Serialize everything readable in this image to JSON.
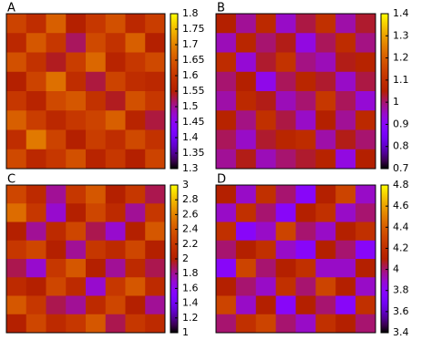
{
  "chart_data": [
    {
      "type": "heatmap",
      "label": "A",
      "zlim": [
        1.3,
        1.8
      ],
      "zticks": [
        1.3,
        1.35,
        1.4,
        1.45,
        1.5,
        1.55,
        1.6,
        1.65,
        1.7,
        1.75,
        1.8
      ],
      "z": [
        [
          1.62,
          1.58,
          1.66,
          1.55,
          1.6,
          1.64,
          1.57,
          1.61
        ],
        [
          1.57,
          1.65,
          1.6,
          1.52,
          1.63,
          1.59,
          1.66,
          1.55
        ],
        [
          1.64,
          1.59,
          1.54,
          1.61,
          1.67,
          1.56,
          1.6,
          1.63
        ],
        [
          1.55,
          1.62,
          1.68,
          1.58,
          1.53,
          1.62,
          1.58,
          1.57
        ],
        [
          1.6,
          1.56,
          1.63,
          1.65,
          1.59,
          1.54,
          1.64,
          1.6
        ],
        [
          1.66,
          1.61,
          1.57,
          1.6,
          1.62,
          1.66,
          1.56,
          1.53
        ],
        [
          1.58,
          1.69,
          1.62,
          1.55,
          1.61,
          1.58,
          1.63,
          1.59
        ],
        [
          1.63,
          1.57,
          1.6,
          1.64,
          1.56,
          1.6,
          1.55,
          1.62
        ]
      ]
    },
    {
      "type": "heatmap",
      "label": "B",
      "zlim": [
        0.7,
        1.4
      ],
      "zticks": [
        0.7,
        0.8,
        0.9,
        1,
        1.1,
        1.2,
        1.3,
        1.4
      ],
      "z": [
        [
          1.05,
          0.98,
          1.08,
          0.95,
          1.02,
          1.1,
          0.97,
          1.03
        ],
        [
          0.96,
          1.07,
          1.0,
          1.04,
          0.93,
          1.01,
          1.09,
          0.99
        ],
        [
          1.09,
          0.94,
          1.03,
          1.11,
          0.99,
          0.96,
          1.04,
          1.06
        ],
        [
          1.0,
          1.05,
          0.92,
          1.01,
          1.07,
          1.03,
          0.95,
          1.02
        ],
        [
          0.97,
          1.08,
          1.04,
          0.96,
          1.0,
          1.12,
          1.01,
          0.94
        ],
        [
          1.06,
          0.99,
          1.1,
          1.02,
          0.95,
          1.05,
          0.98,
          1.08
        ],
        [
          1.01,
          0.95,
          1.03,
          1.07,
          1.09,
          0.97,
          1.04,
          1.0
        ],
        [
          0.98,
          1.04,
          0.96,
          1.0,
          1.03,
          1.06,
          0.93,
          1.05
        ]
      ]
    },
    {
      "type": "heatmap",
      "label": "C",
      "zlim": [
        1,
        3
      ],
      "zticks": [
        1,
        1.2,
        1.4,
        1.6,
        1.8,
        2,
        2.2,
        2.4,
        2.6,
        2.8,
        3
      ],
      "z": [
        [
          2.3,
          2.1,
          1.8,
          2.2,
          2.4,
          2.0,
          2.2,
          1.9
        ],
        [
          2.5,
          2.2,
          1.7,
          2.0,
          2.3,
          2.1,
          1.8,
          2.2
        ],
        [
          2.0,
          1.8,
          2.1,
          2.3,
          1.9,
          1.7,
          2.0,
          2.4
        ],
        [
          2.2,
          2.3,
          2.0,
          1.8,
          2.2,
          2.1,
          2.3,
          2.0
        ],
        [
          1.9,
          1.7,
          2.2,
          2.4,
          2.0,
          1.8,
          2.1,
          1.9
        ],
        [
          2.1,
          2.0,
          2.3,
          2.1,
          1.7,
          2.2,
          2.4,
          2.1
        ],
        [
          2.4,
          2.2,
          1.9,
          1.8,
          2.1,
          2.3,
          2.0,
          1.8
        ],
        [
          2.0,
          2.3,
          2.1,
          2.2,
          2.4,
          1.9,
          2.2,
          2.1
        ]
      ]
    },
    {
      "type": "heatmap",
      "label": "D",
      "zlim": [
        3.4,
        4.8
      ],
      "zticks": [
        3.4,
        3.6,
        3.8,
        4,
        4.2,
        4.4,
        4.6,
        4.8
      ],
      "z": [
        [
          4.1,
          3.9,
          4.2,
          4.0,
          3.8,
          4.1,
          4.3,
          3.9
        ],
        [
          3.9,
          4.2,
          4.0,
          3.8,
          4.1,
          4.2,
          3.9,
          4.0
        ],
        [
          4.2,
          3.8,
          3.9,
          4.3,
          4.0,
          3.9,
          4.1,
          4.2
        ],
        [
          4.0,
          4.1,
          4.2,
          3.9,
          3.8,
          4.1,
          4.0,
          3.8
        ],
        [
          3.8,
          4.3,
          4.0,
          4.1,
          4.2,
          3.9,
          3.9,
          4.1
        ],
        [
          4.1,
          4.0,
          3.9,
          4.2,
          4.0,
          4.3,
          4.1,
          3.9
        ],
        [
          4.3,
          3.9,
          4.1,
          3.8,
          4.1,
          4.0,
          3.8,
          4.2
        ],
        [
          4.0,
          4.2,
          4.3,
          4.0,
          3.9,
          4.2,
          4.1,
          4.0
        ]
      ]
    }
  ]
}
